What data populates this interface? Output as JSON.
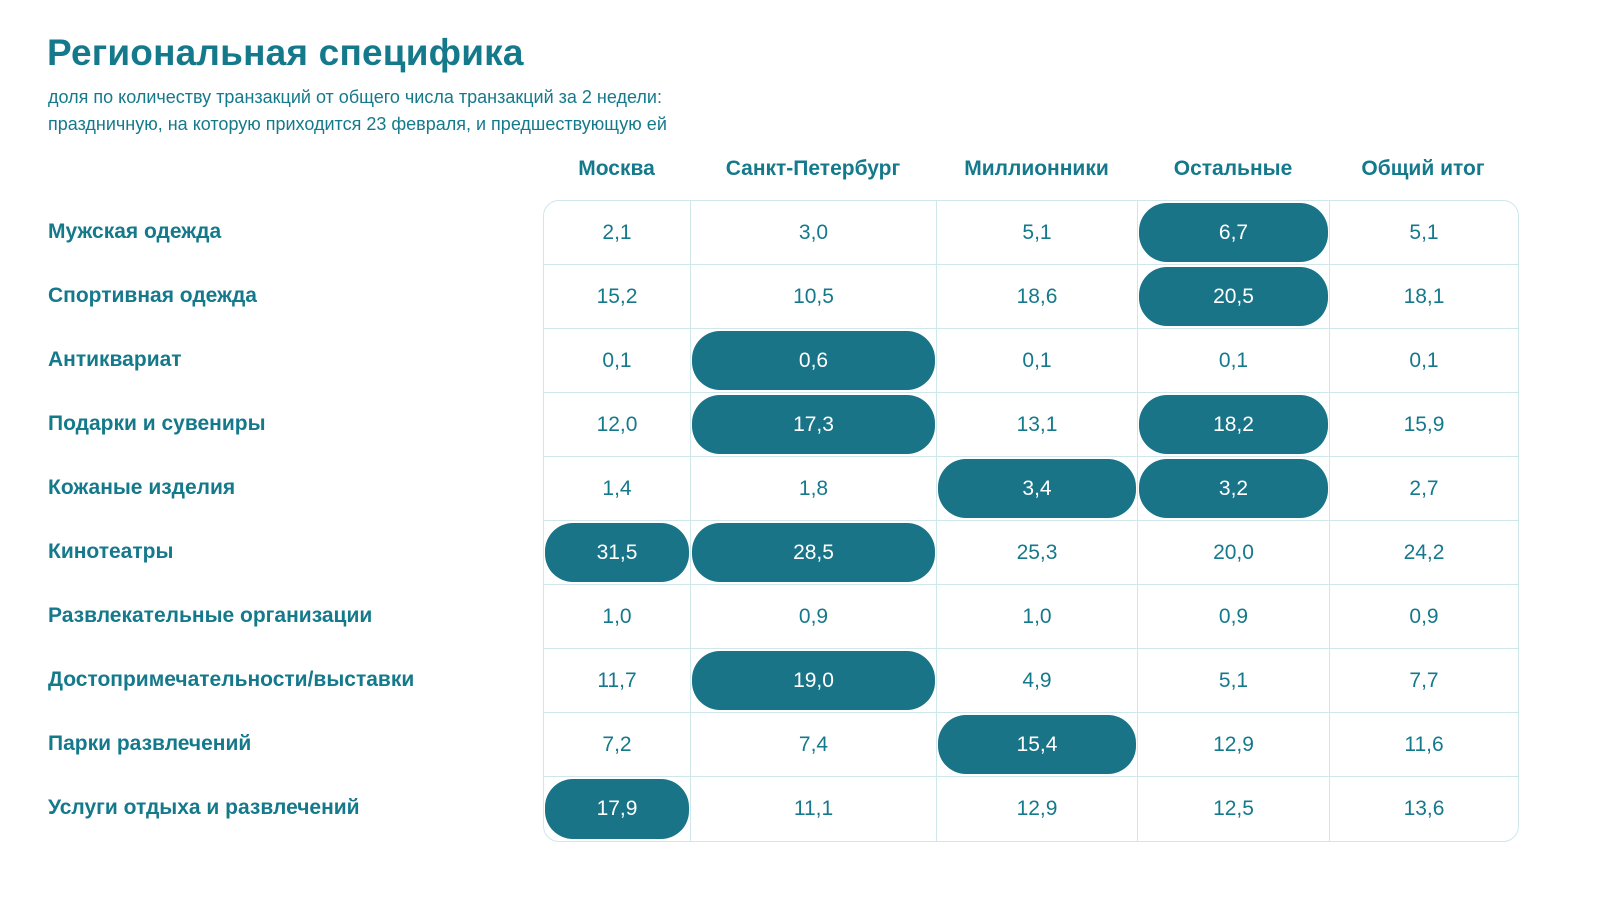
{
  "page": {
    "title": "Региональная специфика",
    "subtitle_line1": "доля по количеству транзакций от общего числа транзакций за 2 недели:",
    "subtitle_line2": "праздничную, на которую приходится 23 февраля, и предшествующую ей"
  },
  "colors": {
    "accent_text": "#15798c",
    "highlight_fill": "#1a7488",
    "grid_border": "#cfe6eb",
    "highlight_text": "#ffffff",
    "background": "#ffffff"
  },
  "chart_data": {
    "type": "heatmap",
    "title": "Региональная специфика",
    "subtitle": "доля по количеству транзакций от общего числа транзакций за 2 недели: праздничную, на которую приходится 23 февраля, и предшествующую ей",
    "columns": [
      "Москва",
      "Санкт-Петербург",
      "Миллионники",
      "Остальные",
      "Общий итог"
    ],
    "rows": [
      {
        "label": "Мужская одежда",
        "display": [
          "2,1",
          "3,0",
          "5,1",
          "6,7",
          "5,1"
        ],
        "values": [
          2.1,
          3.0,
          5.1,
          6.7,
          5.1
        ],
        "highlighted": [
          3
        ]
      },
      {
        "label": "Спортивная одежда",
        "display": [
          "15,2",
          "10,5",
          "18,6",
          "20,5",
          "18,1"
        ],
        "values": [
          15.2,
          10.5,
          18.6,
          20.5,
          18.1
        ],
        "highlighted": [
          3
        ]
      },
      {
        "label": "Антиквариат",
        "display": [
          "0,1",
          "0,6",
          "0,1",
          "0,1",
          "0,1"
        ],
        "values": [
          0.1,
          0.6,
          0.1,
          0.1,
          0.1
        ],
        "highlighted": [
          1
        ]
      },
      {
        "label": "Подарки и сувениры",
        "display": [
          "12,0",
          "17,3",
          "13,1",
          "18,2",
          "15,9"
        ],
        "values": [
          12.0,
          17.3,
          13.1,
          18.2,
          15.9
        ],
        "highlighted": [
          1,
          3
        ]
      },
      {
        "label": "Кожаные изделия",
        "display": [
          "1,4",
          "1,8",
          "3,4",
          "3,2",
          "2,7"
        ],
        "values": [
          1.4,
          1.8,
          3.4,
          3.2,
          2.7
        ],
        "highlighted": [
          2,
          3
        ]
      },
      {
        "label": "Кинотеатры",
        "display": [
          "31,5",
          "28,5",
          "25,3",
          "20,0",
          "24,2"
        ],
        "values": [
          31.5,
          28.5,
          25.3,
          20.0,
          24.2
        ],
        "highlighted": [
          0,
          1
        ]
      },
      {
        "label": "Развлекательные организации",
        "display": [
          "1,0",
          "0,9",
          "1,0",
          "0,9",
          "0,9"
        ],
        "values": [
          1.0,
          0.9,
          1.0,
          0.9,
          0.9
        ],
        "highlighted": []
      },
      {
        "label": "Достопримечательности/выставки",
        "display": [
          "11,7",
          "19,0",
          "4,9",
          "5,1",
          "7,7"
        ],
        "values": [
          11.7,
          19.0,
          4.9,
          5.1,
          7.7
        ],
        "highlighted": [
          1
        ]
      },
      {
        "label": "Парки развлечений",
        "display": [
          "7,2",
          "7,4",
          "15,4",
          "12,9",
          "11,6"
        ],
        "values": [
          7.2,
          7.4,
          15.4,
          12.9,
          11.6
        ],
        "highlighted": [
          2
        ]
      },
      {
        "label": "Услуги отдыха и развлечений",
        "display": [
          "17,9",
          "11,1",
          "12,9",
          "12,5",
          "13,6"
        ],
        "values": [
          17.9,
          11.1,
          12.9,
          12.5,
          13.6
        ],
        "highlighted": [
          0
        ]
      }
    ]
  }
}
